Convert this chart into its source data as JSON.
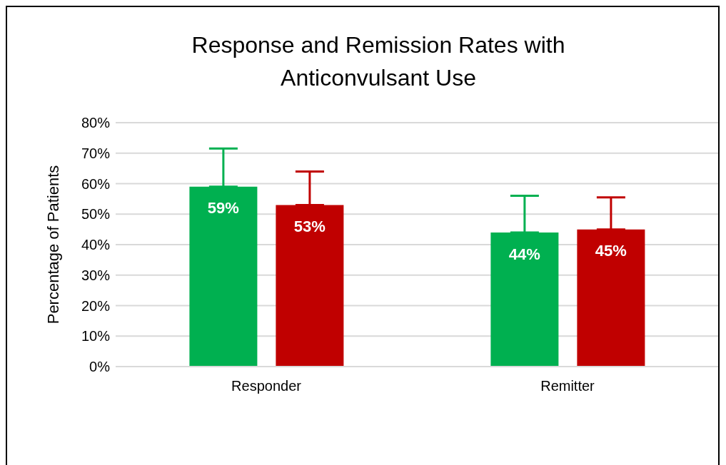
{
  "chart_data": {
    "type": "bar",
    "title": "Response and Remission Rates with Anticonvulsant Use",
    "ylabel": "Percentage of Patients",
    "categories": [
      "Responder",
      "Remitter"
    ],
    "series": [
      {
        "color": "#00b050",
        "values": [
          59,
          44
        ],
        "errors": [
          [
            59,
            71.5
          ],
          [
            44,
            56
          ]
        ],
        "value_labels": [
          "59%",
          "44%"
        ]
      },
      {
        "color": "#c00000",
        "values": [
          53,
          45
        ],
        "errors": [
          [
            53,
            64
          ],
          [
            45,
            55.5
          ]
        ],
        "value_labels": [
          "53%",
          "45%"
        ]
      }
    ],
    "ylim": [
      0,
      80
    ],
    "yticks": [
      {
        "value": 0,
        "label": "0%"
      },
      {
        "value": 10,
        "label": "10%"
      },
      {
        "value": 20,
        "label": "20%"
      },
      {
        "value": 30,
        "label": "30%"
      },
      {
        "value": 40,
        "label": "40%"
      },
      {
        "value": 50,
        "label": "50%"
      },
      {
        "value": 60,
        "label": "60%"
      },
      {
        "value": 70,
        "label": "70%"
      },
      {
        "value": 80,
        "label": "80%"
      }
    ],
    "grid": "y"
  }
}
